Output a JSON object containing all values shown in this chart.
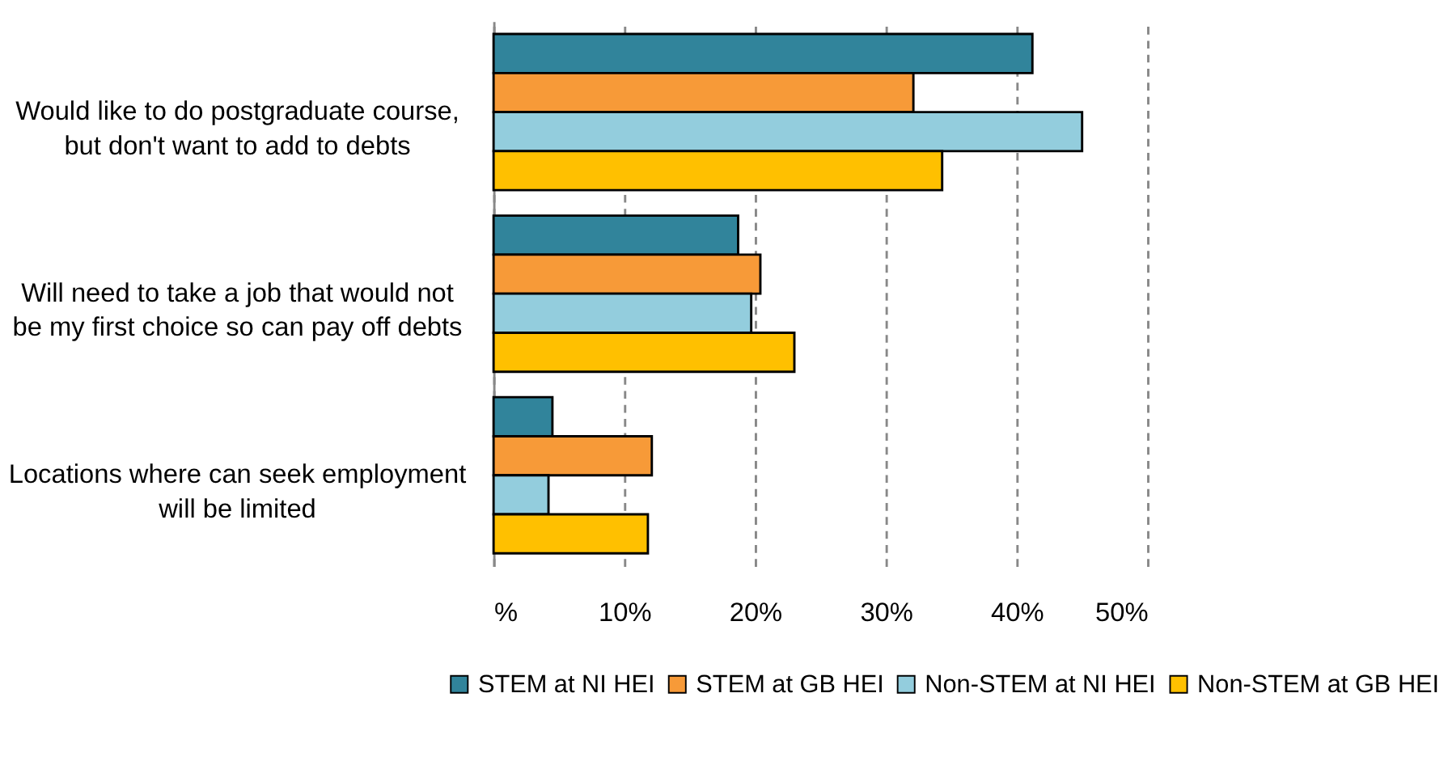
{
  "chart_data": {
    "type": "bar",
    "orientation": "horizontal",
    "categories": [
      "Would like to do postgraduate course,\nbut don't want to add to debts",
      "Will need to take a job that would not\nbe my first choice so can pay off debts",
      "Locations where can seek employment\nwill be limited"
    ],
    "series": [
      {
        "name": "STEM at NI HEI",
        "color": "#31849b",
        "values": [
          41.2,
          18.7,
          4.5
        ]
      },
      {
        "name": "STEM at GB HEI",
        "color": "#f79a38",
        "values": [
          32.1,
          20.4,
          12.1
        ]
      },
      {
        "name": "Non-STEM at NI HEI",
        "color": "#93cddd",
        "values": [
          45.0,
          19.7,
          4.2
        ]
      },
      {
        "name": "Non-STEM at GB HEI",
        "color": "#ffc000",
        "values": [
          34.3,
          23.0,
          11.8
        ]
      }
    ],
    "xlim": [
      0,
      50
    ],
    "xticks": [
      {
        "value": 0,
        "label": "%"
      },
      {
        "value": 10,
        "label": "10%"
      },
      {
        "value": 20,
        "label": "20%"
      },
      {
        "value": 30,
        "label": "30%"
      },
      {
        "value": 40,
        "label": "40%"
      },
      {
        "value": 50,
        "label": "50%"
      }
    ],
    "grid": "x",
    "legend": "bottom"
  }
}
